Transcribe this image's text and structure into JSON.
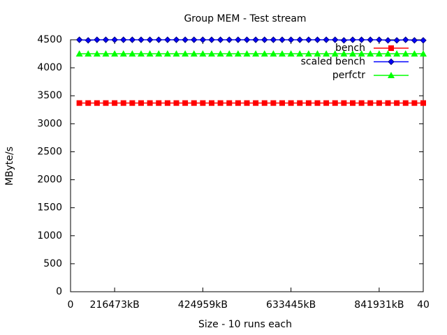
{
  "chart_data": {
    "type": "line",
    "title": "Group MEM - Test stream",
    "xlabel": "Size - 10 runs each",
    "ylabel": "MByte/s",
    "x": [
      1,
      2,
      3,
      4,
      5,
      6,
      7,
      8,
      9,
      10,
      11,
      12,
      13,
      14,
      15,
      16,
      17,
      18,
      19,
      20,
      21,
      22,
      23,
      24,
      25,
      26,
      27,
      28,
      29,
      30,
      31,
      32,
      33,
      34,
      35,
      36,
      37,
      38,
      39,
      40
    ],
    "series": [
      {
        "name": "bench",
        "color": "#ff0000",
        "marker": "square",
        "values": [
          3370,
          3370,
          3370,
          3370,
          3370,
          3370,
          3370,
          3370,
          3370,
          3370,
          3370,
          3370,
          3370,
          3370,
          3370,
          3370,
          3370,
          3370,
          3370,
          3370,
          3370,
          3370,
          3370,
          3370,
          3370,
          3370,
          3370,
          3370,
          3370,
          3370,
          3370,
          3370,
          3370,
          3370,
          3370,
          3370,
          3370,
          3370,
          3370,
          3370
        ]
      },
      {
        "name": "scaled bench",
        "color": "#0000ff",
        "marker": "diamond",
        "values": [
          4500,
          4490,
          4500,
          4500,
          4500,
          4500,
          4500,
          4500,
          4500,
          4500,
          4500,
          4500,
          4500,
          4500,
          4500,
          4500,
          4500,
          4500,
          4500,
          4500,
          4500,
          4500,
          4500,
          4500,
          4500,
          4500,
          4500,
          4500,
          4500,
          4500,
          4490,
          4500,
          4500,
          4500,
          4500,
          4490,
          4490,
          4500,
          4490,
          4490
        ]
      },
      {
        "name": "perfctr",
        "color": "#00ff00",
        "marker": "triangle",
        "values": [
          4250,
          4250,
          4250,
          4250,
          4250,
          4250,
          4250,
          4250,
          4250,
          4250,
          4250,
          4250,
          4250,
          4250,
          4250,
          4250,
          4250,
          4250,
          4250,
          4250,
          4250,
          4250,
          4250,
          4250,
          4250,
          4250,
          4250,
          4250,
          4250,
          4250,
          4250,
          4250,
          4250,
          4250,
          4250,
          4250,
          4250,
          4250,
          4250,
          4250
        ]
      }
    ],
    "xlim": [
      0,
      40
    ],
    "xticks": [
      0,
      {
        "value": 5,
        "label": "216473kB"
      },
      {
        "value": 15,
        "label": "424959kB"
      },
      {
        "value": 25,
        "label": "633445kB"
      },
      {
        "value": 35,
        "label": "841931kB"
      },
      40
    ],
    "ylim": [
      0,
      4500
    ],
    "yticks": [
      0,
      500,
      1000,
      1500,
      2000,
      2500,
      3000,
      3500,
      4000,
      4500
    ],
    "legend": "top-right"
  }
}
